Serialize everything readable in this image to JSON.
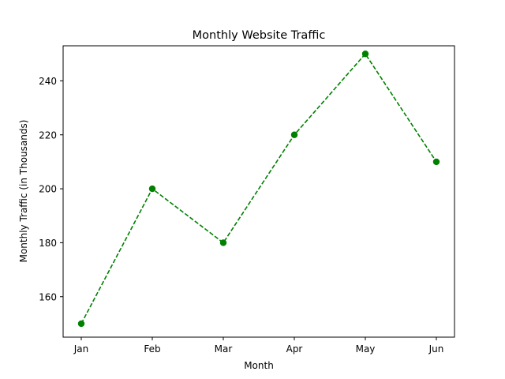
{
  "chart_data": {
    "type": "line",
    "title": "Monthly Website Traffic",
    "xlabel": "Month",
    "ylabel": "Monthly Traffic (in Thousands)",
    "categories": [
      "Jan",
      "Feb",
      "Mar",
      "Apr",
      "May",
      "Jun"
    ],
    "series": [
      {
        "values": [
          150,
          200,
          180,
          220,
          250,
          210
        ],
        "color": "#008000",
        "line_style": "dashed",
        "marker": "circle"
      }
    ],
    "ylim": [
      145,
      253
    ],
    "yticks": [
      160,
      180,
      200,
      220,
      240
    ],
    "grid": false,
    "legend": "none"
  }
}
